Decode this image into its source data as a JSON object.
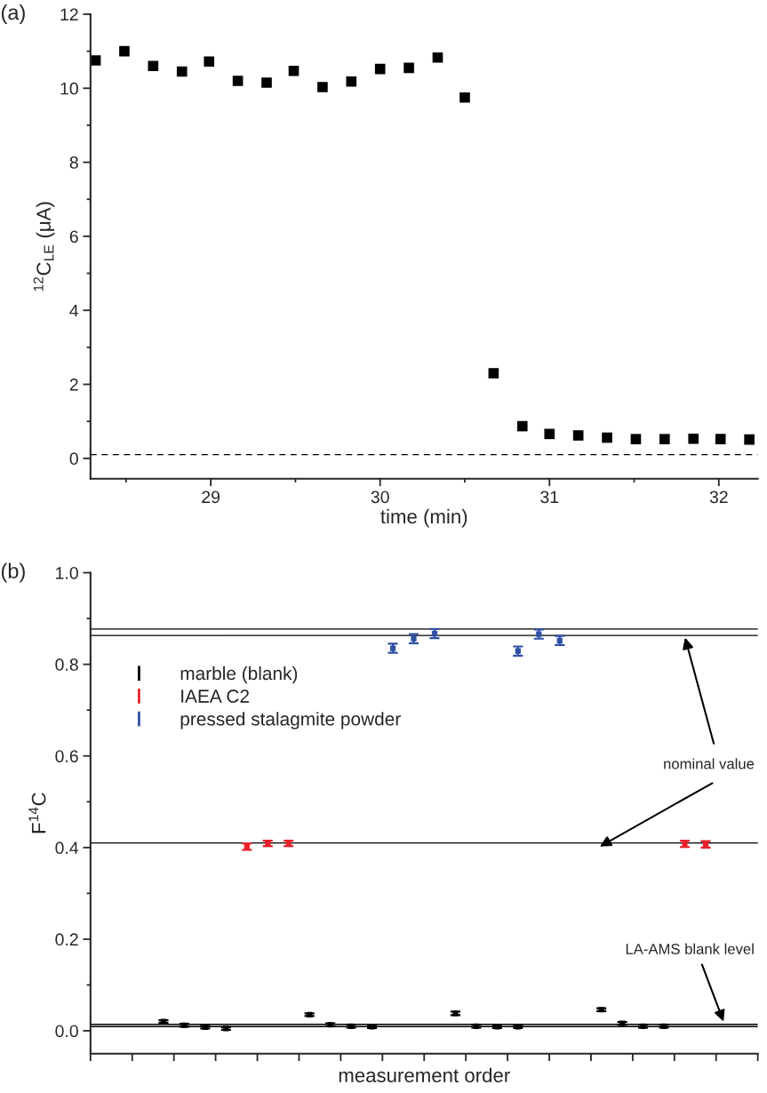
{
  "chart_data": [
    {
      "type": "scatter",
      "xlabel": "time (min)",
      "ylabel": "$^{12}$C$_{LE}$ (μA)",
      "annotations": [
        "(a)"
      ],
      "x": [
        28.32,
        28.49,
        28.66,
        28.83,
        28.99,
        29.16,
        29.33,
        29.49,
        29.66,
        29.83,
        30.0,
        30.17,
        30.34,
        30.5,
        30.67,
        30.84,
        31.0,
        31.17,
        31.34,
        31.51,
        31.68,
        31.85,
        32.01,
        32.18
      ],
      "series": [
        {
          "color": "#000000",
          "values": [
            10.75,
            11.0,
            10.6,
            10.45,
            10.72,
            10.2,
            10.15,
            10.47,
            10.03,
            10.18,
            10.52,
            10.55,
            10.83,
            9.75,
            2.3,
            0.87,
            0.66,
            0.62,
            0.56,
            0.52,
            0.52,
            0.53,
            0.52,
            0.51
          ]
        }
      ],
      "marker": "square",
      "xlim": [
        28.29,
        32.23
      ],
      "ylim": [
        -0.55,
        12
      ],
      "xticks": [
        29,
        30,
        31,
        32
      ],
      "yticks": [
        0,
        2,
        4,
        6,
        8,
        10,
        12
      ],
      "ref_lines": [
        {
          "axis": "y",
          "value": 0.1,
          "label": null,
          "color": "#000000",
          "line_style": "dashed"
        }
      ],
      "grid": false
    },
    {
      "type": "scatter",
      "xlabel": "measurement order",
      "ylabel": "F$^{14}$C",
      "annotations": [
        "(b)",
        "nominal value",
        "LA-AMS blank level"
      ],
      "categories": [
        null,
        null,
        null,
        null,
        null,
        null,
        null,
        null,
        null,
        null,
        null,
        null,
        null,
        null,
        null,
        null,
        null,
        null,
        null,
        null,
        null,
        null,
        null,
        null,
        null,
        null,
        null,
        null,
        null,
        null,
        null,
        null
      ],
      "series": [
        {
          "name": "marble (blank)",
          "color": "#000000",
          "values": [
            null,
            null,
            null,
            0.02,
            0.012,
            0.008,
            0.005,
            null,
            null,
            null,
            0.035,
            0.013,
            0.01,
            0.009,
            null,
            null,
            null,
            0.038,
            0.01,
            0.009,
            0.009,
            null,
            null,
            null,
            0.046,
            0.016,
            0.01,
            0.01,
            null,
            null,
            null,
            null
          ],
          "errors": [
            null,
            null,
            null,
            0.003,
            0.003,
            0.003,
            0.003,
            null,
            null,
            null,
            0.003,
            0.003,
            0.003,
            0.003,
            null,
            null,
            null,
            0.004,
            0.003,
            0.003,
            0.003,
            null,
            null,
            null,
            0.003,
            0.003,
            0.003,
            0.003,
            null,
            null,
            null,
            null
          ]
        },
        {
          "name": "IAEA C2",
          "color": "#e8202a",
          "values": [
            null,
            null,
            null,
            null,
            null,
            null,
            null,
            0.402,
            0.409,
            0.409,
            null,
            null,
            null,
            null,
            null,
            null,
            null,
            null,
            null,
            null,
            null,
            null,
            null,
            null,
            null,
            null,
            null,
            null,
            0.408,
            0.407,
            null,
            null
          ],
          "errors": [
            null,
            null,
            null,
            null,
            null,
            null,
            null,
            0.007,
            0.006,
            0.006,
            null,
            null,
            null,
            null,
            null,
            null,
            null,
            null,
            null,
            null,
            null,
            null,
            null,
            null,
            null,
            null,
            null,
            null,
            0.007,
            0.007,
            null,
            null
          ]
        },
        {
          "name": "pressed stalagmite powder",
          "color": "#2e4fa3",
          "values": [
            null,
            null,
            null,
            null,
            null,
            null,
            null,
            null,
            null,
            null,
            null,
            null,
            null,
            null,
            0.835,
            0.856,
            0.867,
            null,
            null,
            null,
            0.829,
            0.866,
            0.852,
            null,
            null,
            null,
            null,
            null,
            null,
            null,
            null,
            null
          ],
          "errors": [
            null,
            null,
            null,
            null,
            null,
            null,
            null,
            null,
            null,
            null,
            null,
            null,
            null,
            null,
            0.01,
            0.01,
            0.01,
            null,
            null,
            null,
            0.01,
            0.01,
            0.01,
            null,
            null,
            null,
            null,
            null,
            null,
            null,
            null,
            null
          ]
        }
      ],
      "ylim": [
        -0.05,
        1.0
      ],
      "yticks": [
        {
          "value": 0,
          "label": "0.0"
        },
        0.2,
        0.4,
        0.6,
        0.8,
        {
          "value": 1.0,
          "label": "1.0"
        }
      ],
      "ref_lines": [
        {
          "axis": "y",
          "value": 0.877,
          "label": null,
          "color": "#000000"
        },
        {
          "axis": "y",
          "value": 0.863,
          "label": null,
          "color": "#000000"
        },
        {
          "axis": "y",
          "value": 0.41,
          "label": null,
          "color": "#000000"
        },
        {
          "axis": "y",
          "value": 0.014,
          "label": null,
          "color": "#000000"
        },
        {
          "axis": "y",
          "value": 0.009,
          "label": null,
          "color": "#000000"
        }
      ],
      "legend": "top left",
      "tick_labels": "y",
      "marker": "square",
      "grid": false
    }
  ]
}
